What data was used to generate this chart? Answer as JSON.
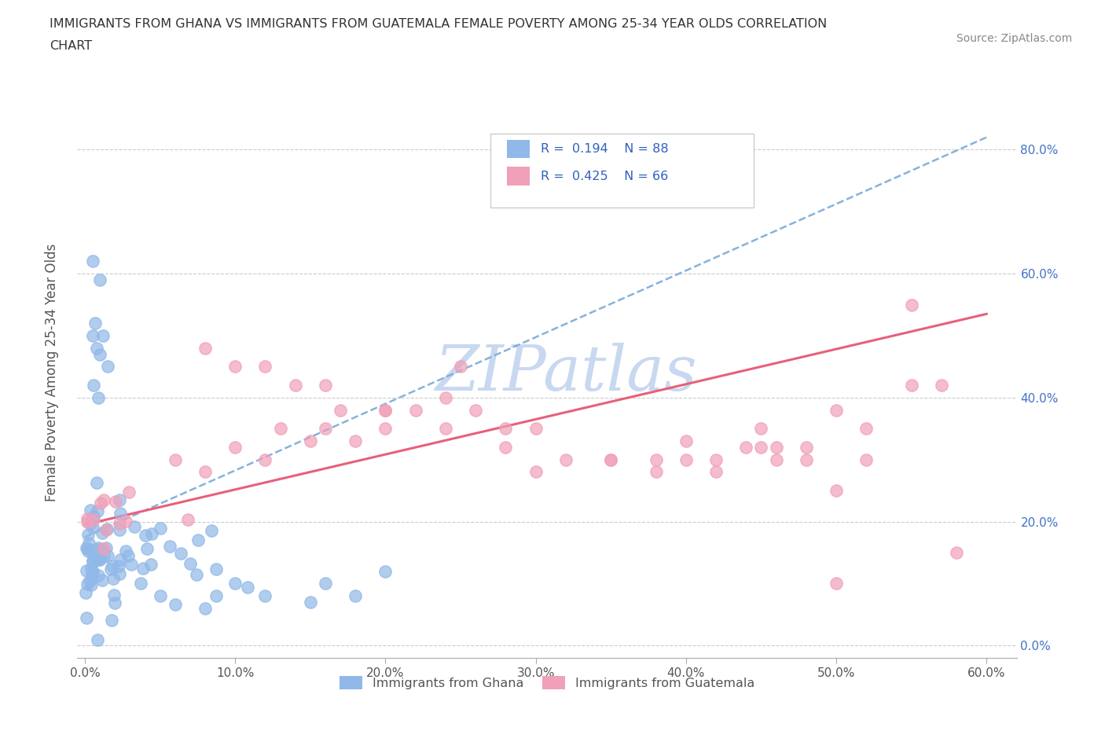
{
  "title_line1": "IMMIGRANTS FROM GHANA VS IMMIGRANTS FROM GUATEMALA FEMALE POVERTY AMONG 25-34 YEAR OLDS CORRELATION",
  "title_line2": "CHART",
  "source_text": "Source: ZipAtlas.com",
  "ylabel_label": "Female Poverty Among 25-34 Year Olds",
  "R_ghana": 0.194,
  "N_ghana": 88,
  "R_guatemala": 0.425,
  "N_guatemala": 66,
  "ghana_color": "#90b8e8",
  "guatemala_color": "#f0a0b8",
  "ghana_trend_color": "#7aaad8",
  "guatemala_trend_color": "#e8607a",
  "watermark": "ZIPatlas",
  "watermark_color": "#c8d8f0",
  "ghana_trend_x0": 0.0,
  "ghana_trend_y0": 0.175,
  "ghana_trend_x1": 0.6,
  "ghana_trend_y1": 0.82,
  "guatemala_trend_x0": 0.0,
  "guatemala_trend_y0": 0.195,
  "guatemala_trend_x1": 0.6,
  "guatemala_trend_y1": 0.535,
  "xlim": [
    0.0,
    0.62
  ],
  "ylim": [
    -0.02,
    0.9
  ],
  "xtick_vals": [
    0.0,
    0.1,
    0.2,
    0.3,
    0.4,
    0.5,
    0.6
  ],
  "ytick_vals": [
    0.0,
    0.2,
    0.4,
    0.6,
    0.8
  ]
}
